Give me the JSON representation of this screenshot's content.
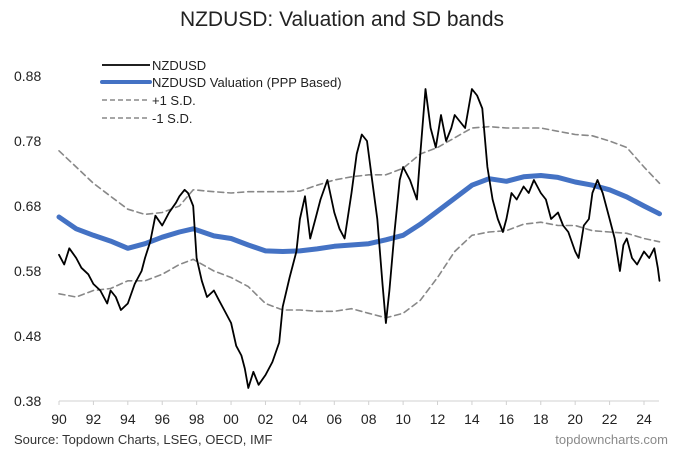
{
  "chart_data": {
    "type": "line",
    "title": "NZDUSD: Valuation and SD bands",
    "xlabel": "",
    "ylabel": "",
    "xlim": [
      1990,
      2024.9
    ],
    "ylim": [
      0.38,
      0.88
    ],
    "yticks": [
      0.38,
      0.48,
      0.58,
      0.68,
      0.78,
      0.88
    ],
    "ytick_labels": [
      "0.38",
      "0.48",
      "0.58",
      "0.68",
      "0.78",
      "0.88"
    ],
    "xticks": [
      1990,
      1992,
      1994,
      1996,
      1998,
      2000,
      2002,
      2004,
      2006,
      2008,
      2010,
      2012,
      2014,
      2016,
      2018,
      2020,
      2022,
      2024
    ],
    "xtick_labels": [
      "90",
      "92",
      "94",
      "96",
      "98",
      "00",
      "02",
      "04",
      "06",
      "08",
      "10",
      "12",
      "14",
      "16",
      "18",
      "20",
      "22",
      "24"
    ],
    "grid": false,
    "legend_position": "top-left",
    "series": [
      {
        "name": "NZDUSD",
        "color": "#000000",
        "style": "solid",
        "x": [
          1990.0,
          1990.3,
          1990.6,
          1991.0,
          1991.3,
          1991.7,
          1992.0,
          1992.4,
          1992.8,
          1993.0,
          1993.3,
          1993.6,
          1994.0,
          1994.4,
          1994.8,
          1995.0,
          1995.3,
          1995.6,
          1996.0,
          1996.4,
          1996.8,
          1997.0,
          1997.3,
          1997.5,
          1997.8,
          1998.0,
          1998.3,
          1998.6,
          1999.0,
          1999.3,
          1999.6,
          2000.0,
          2000.3,
          2000.6,
          2000.8,
          2001.0,
          2001.3,
          2001.6,
          2002.0,
          2002.4,
          2002.8,
          2003.0,
          2003.4,
          2003.8,
          2004.0,
          2004.3,
          2004.6,
          2004.9,
          2005.2,
          2005.6,
          2006.0,
          2006.3,
          2006.6,
          2007.0,
          2007.3,
          2007.6,
          2007.9,
          2008.2,
          2008.5,
          2008.8,
          2009.0,
          2009.2,
          2009.5,
          2009.8,
          2010.0,
          2010.4,
          2010.8,
          2011.0,
          2011.3,
          2011.6,
          2011.9,
          2012.2,
          2012.5,
          2012.8,
          2013.0,
          2013.3,
          2013.6,
          2014.0,
          2014.3,
          2014.6,
          2014.9,
          2015.2,
          2015.5,
          2015.8,
          2016.0,
          2016.3,
          2016.6,
          2017.0,
          2017.3,
          2017.6,
          2018.0,
          2018.3,
          2018.6,
          2019.0,
          2019.3,
          2019.6,
          2020.0,
          2020.2,
          2020.5,
          2020.8,
          2021.0,
          2021.3,
          2021.6,
          2022.0,
          2022.3,
          2022.6,
          2022.8,
          2023.0,
          2023.3,
          2023.6,
          2024.0,
          2024.3,
          2024.6,
          2024.8,
          2024.9
        ],
        "y": [
          0.605,
          0.59,
          0.615,
          0.6,
          0.585,
          0.575,
          0.56,
          0.55,
          0.53,
          0.55,
          0.54,
          0.52,
          0.53,
          0.56,
          0.58,
          0.6,
          0.625,
          0.665,
          0.65,
          0.67,
          0.685,
          0.695,
          0.705,
          0.7,
          0.68,
          0.6,
          0.565,
          0.54,
          0.55,
          0.535,
          0.52,
          0.5,
          0.465,
          0.45,
          0.43,
          0.4,
          0.425,
          0.405,
          0.42,
          0.44,
          0.47,
          0.525,
          0.57,
          0.61,
          0.66,
          0.695,
          0.63,
          0.66,
          0.69,
          0.72,
          0.67,
          0.645,
          0.63,
          0.7,
          0.76,
          0.79,
          0.78,
          0.72,
          0.66,
          0.56,
          0.5,
          0.55,
          0.64,
          0.72,
          0.74,
          0.72,
          0.69,
          0.76,
          0.86,
          0.8,
          0.77,
          0.82,
          0.78,
          0.8,
          0.82,
          0.81,
          0.8,
          0.86,
          0.85,
          0.83,
          0.74,
          0.69,
          0.66,
          0.64,
          0.66,
          0.7,
          0.69,
          0.71,
          0.7,
          0.72,
          0.7,
          0.69,
          0.66,
          0.67,
          0.65,
          0.64,
          0.61,
          0.6,
          0.65,
          0.66,
          0.7,
          0.72,
          0.7,
          0.66,
          0.63,
          0.58,
          0.62,
          0.63,
          0.6,
          0.59,
          0.61,
          0.6,
          0.615,
          0.585,
          0.565
        ]
      },
      {
        "name": "NZDUSD Valuation (PPP Based)",
        "color": "#4472c4",
        "style": "solid-thick",
        "x": [
          1990,
          1991,
          1992,
          1993,
          1994,
          1995,
          1996,
          1997,
          1997.8,
          1999,
          2000,
          2001,
          2002,
          2003,
          2004,
          2005,
          2006,
          2007,
          2008,
          2009,
          2010,
          2011,
          2012,
          2013,
          2014,
          2015,
          2016,
          2017,
          2018,
          2019,
          2020,
          2021,
          2022,
          2023,
          2024,
          2024.9
        ],
        "y": [
          0.663,
          0.645,
          0.635,
          0.626,
          0.615,
          0.622,
          0.632,
          0.64,
          0.645,
          0.634,
          0.63,
          0.62,
          0.611,
          0.61,
          0.611,
          0.614,
          0.618,
          0.62,
          0.622,
          0.628,
          0.635,
          0.652,
          0.672,
          0.692,
          0.712,
          0.722,
          0.718,
          0.725,
          0.727,
          0.724,
          0.717,
          0.712,
          0.705,
          0.694,
          0.68,
          0.668
        ]
      },
      {
        "name": "+1 S.D.",
        "color": "#888888",
        "style": "dashed",
        "x": [
          1990,
          1991,
          1992,
          1993,
          1994,
          1995,
          1996,
          1997,
          1997.8,
          1999,
          2000,
          2001,
          2002,
          2003,
          2004,
          2005,
          2006,
          2007,
          2008,
          2009,
          2010,
          2011,
          2012,
          2013,
          2014,
          2015,
          2016,
          2017,
          2018,
          2019,
          2020,
          2021,
          2022,
          2023,
          2024,
          2024.9
        ],
        "y": [
          0.765,
          0.74,
          0.715,
          0.695,
          0.675,
          0.667,
          0.67,
          0.68,
          0.705,
          0.702,
          0.7,
          0.702,
          0.702,
          0.702,
          0.703,
          0.712,
          0.72,
          0.725,
          0.728,
          0.728,
          0.738,
          0.76,
          0.77,
          0.785,
          0.8,
          0.802,
          0.8,
          0.8,
          0.8,
          0.795,
          0.79,
          0.788,
          0.78,
          0.77,
          0.74,
          0.715
        ]
      },
      {
        "name": "-1 S.D.",
        "color": "#888888",
        "style": "dashed",
        "x": [
          1990,
          1991,
          1992,
          1993,
          1994,
          1995,
          1996,
          1997,
          1997.8,
          1999,
          2000,
          2001,
          2002,
          2003,
          2004,
          2005,
          2006,
          2007,
          2008,
          2009,
          2010,
          2011,
          2012,
          2013,
          2014,
          2015,
          2016,
          2017,
          2018,
          2019,
          2020,
          2021,
          2022,
          2023,
          2024,
          2024.9
        ],
        "y": [
          0.545,
          0.54,
          0.55,
          0.553,
          0.565,
          0.565,
          0.575,
          0.59,
          0.598,
          0.58,
          0.57,
          0.556,
          0.53,
          0.52,
          0.52,
          0.518,
          0.518,
          0.522,
          0.515,
          0.508,
          0.515,
          0.535,
          0.57,
          0.61,
          0.635,
          0.64,
          0.642,
          0.652,
          0.655,
          0.65,
          0.65,
          0.642,
          0.64,
          0.638,
          0.63,
          0.625
        ]
      }
    ],
    "source": "Source: Topdown Charts, LSEG, OECD, IMF",
    "brand": "topdowncharts.com"
  }
}
